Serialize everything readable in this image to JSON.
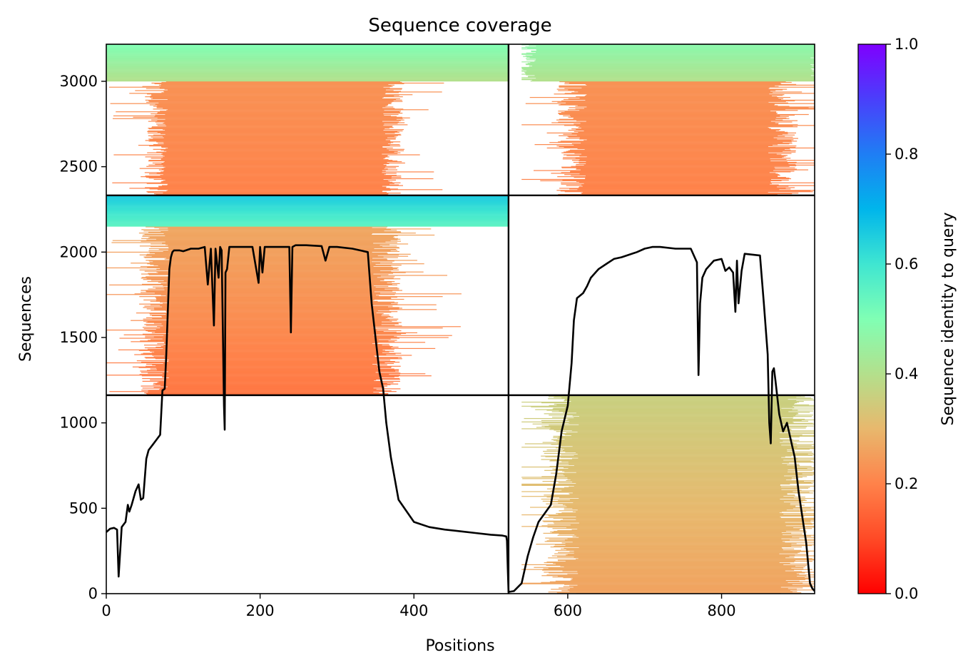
{
  "chart_data": {
    "type": "heatmap",
    "title": "Sequence coverage",
    "xlabel": "Positions",
    "ylabel": "Sequences",
    "xlim": [
      0,
      921
    ],
    "ylim": [
      0,
      3217
    ],
    "xticks": [
      0,
      200,
      400,
      600,
      800
    ],
    "yticks": [
      0,
      500,
      1000,
      1500,
      2000,
      2500,
      3000
    ],
    "chain_break": 523,
    "sequence_blocks": [
      {
        "x": [
          0,
          523
        ],
        "y": [
          1162,
          2332
        ]
      },
      {
        "x": [
          0,
          523
        ],
        "y": [
          2332,
          3217
        ]
      },
      {
        "x": [
          523,
          921
        ],
        "y": [
          0,
          1162
        ]
      },
      {
        "x": [
          523,
          921
        ],
        "y": [
          2332,
          3217
        ]
      }
    ],
    "block_boundaries_y": [
      1162,
      2332
    ],
    "colorbar": {
      "label": "Sequence identity to query",
      "range": [
        0,
        1
      ],
      "ticks": [
        0.0,
        0.2,
        0.4,
        0.6,
        0.8,
        1.0
      ],
      "tick_labels": [
        "0.0",
        "0.2",
        "0.4",
        "0.6",
        "0.8",
        "1.0"
      ],
      "colormap": "rainbow_r"
    },
    "coverage_line": {
      "x": [
        0,
        5,
        10,
        14,
        16,
        20,
        25,
        28,
        30,
        33,
        38,
        42,
        45,
        48,
        52,
        55,
        60,
        65,
        70,
        73,
        76,
        78,
        80,
        82,
        84,
        86,
        88,
        95,
        100,
        110,
        120,
        128,
        132,
        136,
        140,
        142,
        146,
        148,
        150,
        153,
        154,
        155,
        157,
        160,
        170,
        180,
        190,
        198,
        200,
        203,
        206,
        212,
        225,
        238,
        240,
        242,
        246,
        260,
        280,
        285,
        290,
        300,
        320,
        340,
        345,
        350,
        355,
        360,
        362,
        364,
        370,
        380,
        400,
        420,
        440,
        460,
        480,
        500,
        515,
        520,
        521,
        522,
        523,
        530,
        540,
        548,
        555,
        562,
        570,
        578,
        585,
        592,
        600,
        605,
        608,
        612,
        620,
        625,
        630,
        640,
        650,
        660,
        670,
        690,
        700,
        710,
        720,
        740,
        760,
        768,
        770,
        772,
        775,
        780,
        790,
        800,
        805,
        810,
        815,
        818,
        820,
        822,
        826,
        830,
        850,
        855,
        860,
        862,
        864,
        866,
        868,
        870,
        875,
        880,
        885,
        890,
        895,
        900,
        910,
        915,
        918,
        921
      ],
      "y": [
        360,
        380,
        385,
        375,
        100,
        390,
        420,
        520,
        480,
        520,
        600,
        640,
        550,
        560,
        790,
        840,
        870,
        900,
        930,
        1190,
        1200,
        1400,
        1660,
        1900,
        1970,
        2000,
        2010,
        2010,
        2005,
        2020,
        2020,
        2030,
        1810,
        2020,
        1570,
        2020,
        1850,
        2030,
        2010,
        1100,
        960,
        1880,
        1900,
        2030,
        2030,
        2030,
        2030,
        1820,
        2030,
        1880,
        2030,
        2030,
        2030,
        2030,
        1530,
        2030,
        2040,
        2040,
        2035,
        1950,
        2030,
        2030,
        2020,
        2000,
        1700,
        1500,
        1300,
        1200,
        1100,
        1000,
        800,
        550,
        420,
        390,
        375,
        365,
        355,
        345,
        340,
        335,
        310,
        150,
        10,
        15,
        60,
        220,
        330,
        420,
        470,
        520,
        700,
        950,
        1100,
        1350,
        1600,
        1730,
        1760,
        1800,
        1850,
        1900,
        1930,
        1960,
        1970,
        2000,
        2020,
        2030,
        2030,
        2020,
        2020,
        1940,
        1280,
        1700,
        1850,
        1900,
        1950,
        1960,
        1890,
        1910,
        1880,
        1650,
        1950,
        1700,
        1890,
        1990,
        1980,
        1700,
        1400,
        1000,
        880,
        1300,
        1320,
        1250,
        1050,
        950,
        1000,
        900,
        800,
        600,
        300,
        60,
        30,
        15
      ]
    }
  }
}
